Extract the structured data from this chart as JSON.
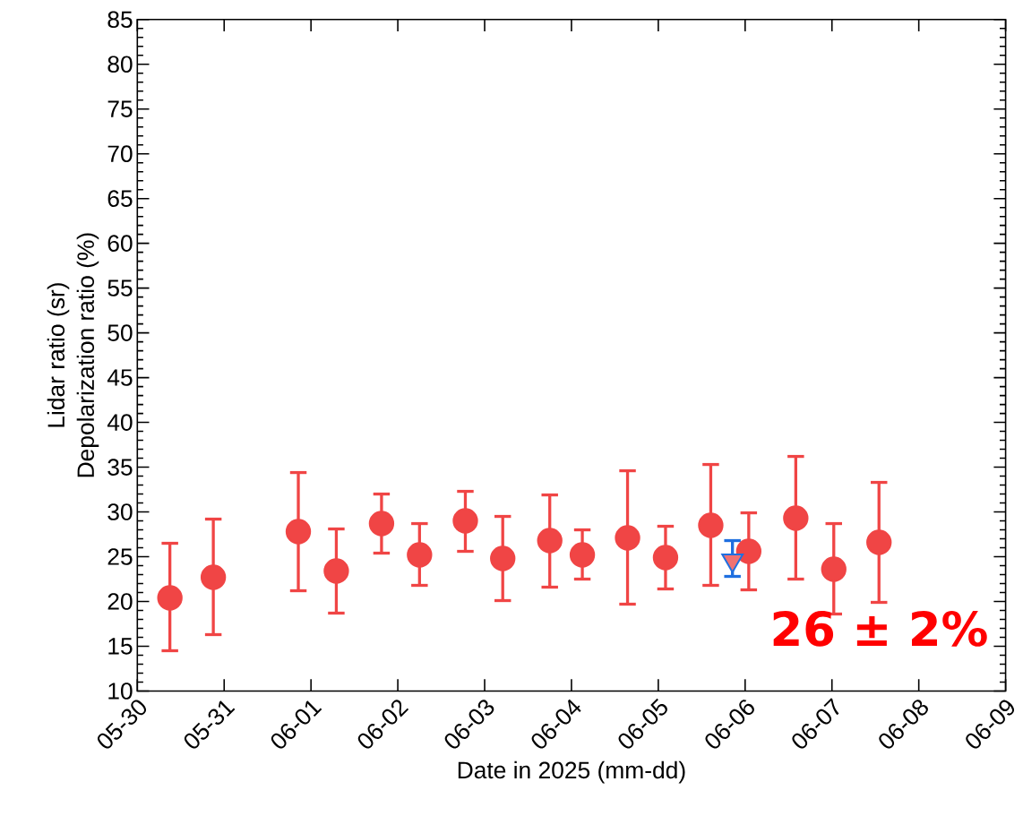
{
  "chart_data": {
    "type": "scatter",
    "xlabel": "Date in 2025 (mm-dd)",
    "ylabel": "Lidar ratio (sr)",
    "annotations": [
      "26 ± 2%",
      "Depolarization ratio (%)"
    ],
    "xlim": [
      "2025-05-30",
      "2025-06-09"
    ],
    "xticks": [
      {
        "value": "2025-05-30",
        "label": "05-30"
      },
      {
        "value": "2025-05-31",
        "label": "05-31"
      },
      {
        "value": "2025-06-01",
        "label": "06-01"
      },
      {
        "value": "2025-06-02",
        "label": "06-02"
      },
      {
        "value": "2025-06-03",
        "label": "06-03"
      },
      {
        "value": "2025-06-04",
        "label": "06-04"
      },
      {
        "value": "2025-06-05",
        "label": "06-05"
      },
      {
        "value": "2025-06-06",
        "label": "06-06"
      },
      {
        "value": "2025-06-07",
        "label": "06-07"
      },
      {
        "value": "2025-06-08",
        "label": "06-08"
      },
      {
        "value": "2025-06-09",
        "label": "06-09"
      }
    ],
    "ylim": [
      10,
      85
    ],
    "yticks": [
      10,
      15,
      20,
      25,
      30,
      35,
      40,
      45,
      50,
      55,
      60,
      65,
      70,
      75,
      80,
      85
    ],
    "grid": false,
    "series": [
      {
        "color": "#f04545",
        "marker": "circle",
        "x": [
          "2025-05-30T09:00"
        ],
        "values": [
          20.4
        ],
        "errors": [
          [
            14.5,
            26.5
          ]
        ]
      },
      {
        "color": "#f04545",
        "marker": "circle",
        "x": [
          "2025-05-30T21:00",
          "2025-05-31T20:30",
          "2025-06-01T07:00",
          "2025-06-01T19:30",
          "2025-06-02T06:00",
          "2025-06-02T18:40",
          "2025-06-03T05:00",
          "2025-06-03T18:00",
          "2025-06-04T03:00",
          "2025-06-04T15:30",
          "2025-06-05T02:00",
          "2025-06-05T14:30",
          "2025-06-06T01:00",
          "2025-06-06T14:00",
          "2025-06-07T00:30",
          "2025-06-07T13:00"
        ],
        "values": [
          22.7,
          27.8,
          23.4,
          28.7,
          25.2,
          29.0,
          24.8,
          26.8,
          25.2,
          27.1,
          24.9,
          28.5,
          25.6,
          29.3,
          23.6,
          26.6
        ],
        "errors": [
          [
            16.3,
            29.2
          ],
          [
            21.2,
            34.4
          ],
          [
            18.7,
            28.1
          ],
          [
            25.4,
            32.0
          ],
          [
            21.8,
            28.7
          ],
          [
            25.6,
            32.3
          ],
          [
            20.1,
            29.5
          ],
          [
            21.6,
            31.9
          ],
          [
            22.5,
            28.0
          ],
          [
            19.7,
            34.6
          ],
          [
            21.4,
            28.4
          ],
          [
            21.8,
            35.3
          ],
          [
            21.3,
            29.9
          ],
          [
            22.5,
            36.2
          ],
          [
            18.6,
            28.7
          ],
          [
            19.9,
            33.3
          ]
        ]
      },
      {
        "color": "#f07272",
        "marker": "triangle",
        "x": [
          "2025-06-05T20:30"
        ],
        "values": [
          24.6
        ],
        "errors": [
          [
            22.8,
            26.8
          ]
        ]
      }
    ]
  }
}
